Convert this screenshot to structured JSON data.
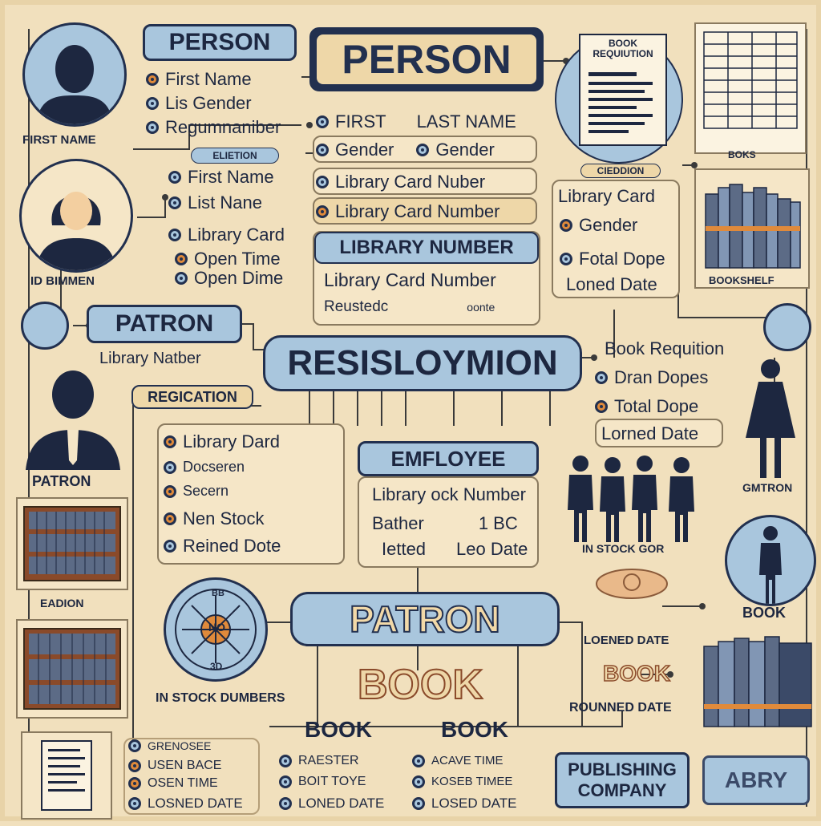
{
  "person_label_small": "PERSON",
  "person_title": "PERSON",
  "person_caption": "FIRST NAME",
  "person_fields": [
    "First Name",
    "Lis Gender",
    "Regumnaniber"
  ],
  "section_center_top": {
    "tag": "ELIETION",
    "rows": [
      "FIRST",
      "LAST NAME",
      "Gender",
      "Gender",
      "Library Card Nuber",
      "Library Card Number"
    ]
  },
  "woman_caption": "ID BIMMEN",
  "woman_fields": [
    "First Name",
    "List Nane",
    "Library Card",
    "Open Time",
    "Open Dime"
  ],
  "library_number": {
    "header": "LIBRARY NUMBER",
    "rows": [
      "Library Card Number",
      "Reustedc",
      "oonte"
    ]
  },
  "book_requisition": {
    "title": "BOOK REQUIUTION",
    "doc_caption": "BOKS"
  },
  "right_box": {
    "tag": "CIEDDION",
    "rows": [
      "Library Card",
      "Gender",
      "Fotal Dope",
      "Loned Date"
    ]
  },
  "bookshelf_caption": "BOOKSHELF",
  "patron_label": "PATRON",
  "patron_sub": "Library Natber",
  "center_title": "RESISLOYMION",
  "right_list": [
    "Book Requition",
    "Dran Dopes",
    "Total Dope",
    "Lorned Date"
  ],
  "regication": {
    "tag": "REGICATION",
    "rows": [
      "Library Dard",
      "Docseren",
      "Secern",
      "Nen Stock",
      "Reined Dote"
    ]
  },
  "patron_caption": "PATRON",
  "employee": {
    "header": "EMFLOYEE",
    "rows": [
      "Library ock Number",
      "Bather",
      "1 BC",
      "Ietted",
      "Leo Date"
    ]
  },
  "gmtron_caption": "GMTRON",
  "in_stock_right": "IN STOCK GOR",
  "book_caption_right": "BOOK",
  "loaned_date_label": "LOENED DATE",
  "book_outline": "BOOK",
  "rounned_date_label": "ROUNNED DATE",
  "eadion_caption": "EADION",
  "dial": {
    "top": "BB",
    "center": "NO",
    "bottom": "3D"
  },
  "in_stock_numbers": "IN STOCK DUMBERS",
  "patron_big": "PATRON",
  "book_big": "BOOK",
  "bottom_left_list": [
    "GRENOSEE",
    "USEN BACE",
    "OSEN TIME",
    "LOSNED DATE"
  ],
  "bottom_mid_col": {
    "header": "BOOK",
    "rows": [
      "RAESTER",
      "BOIT TOYE",
      "LONED DATE"
    ]
  },
  "bottom_right_col": {
    "header": "BOOK",
    "rows": [
      "ACAVE TIME",
      "KOSEB TIMEE",
      "LOSED DATE"
    ]
  },
  "publishing_company": "PUBLISHING COMPANY",
  "abry": "ABRY",
  "colors": {
    "background": "#f1e0bd",
    "navy": "#22304f",
    "blue": "#a9c6dd",
    "orange": "#e08a3b"
  }
}
